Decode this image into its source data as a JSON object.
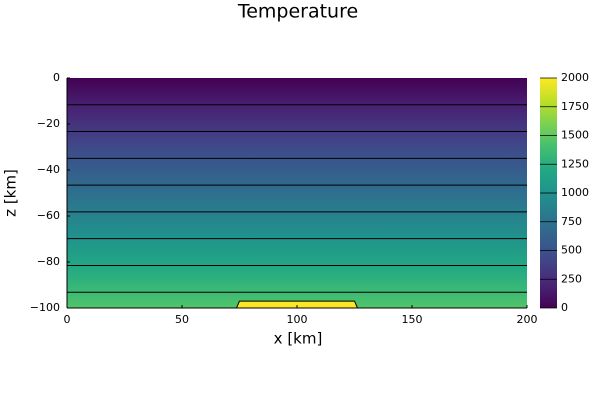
{
  "chart_data": {
    "type": "contour",
    "title": "Temperature",
    "x_label": "x [km]",
    "y_label": "z [km]",
    "xlim": [
      0,
      200
    ],
    "ylim": [
      -100,
      0
    ],
    "xticks": [
      0,
      50,
      100,
      150,
      200
    ],
    "yticks": [
      {
        "value": 0,
        "label": "0"
      },
      {
        "value": -20,
        "label": "−20"
      },
      {
        "value": -40,
        "label": "−40"
      },
      {
        "value": -60,
        "label": "−60"
      },
      {
        "value": -80,
        "label": "−80"
      },
      {
        "value": -100,
        "label": "−100"
      }
    ],
    "profile": {
      "z": [
        0,
        -25,
        -50,
        -75,
        -100
      ],
      "values": [
        0,
        365,
        730,
        1095,
        1460
      ]
    },
    "levels": [
      170,
      340,
      510,
      680,
      850,
      1020,
      1190,
      1360
    ],
    "anomaly": {
      "x": [
        75,
        125
      ],
      "z": [
        -97,
        -100
      ],
      "value": 2000
    },
    "clim": [
      0,
      2000
    ],
    "cticks": [
      0,
      250,
      500,
      750,
      1000,
      1250,
      1500,
      1750,
      2000
    ],
    "colormap": "viridis"
  }
}
